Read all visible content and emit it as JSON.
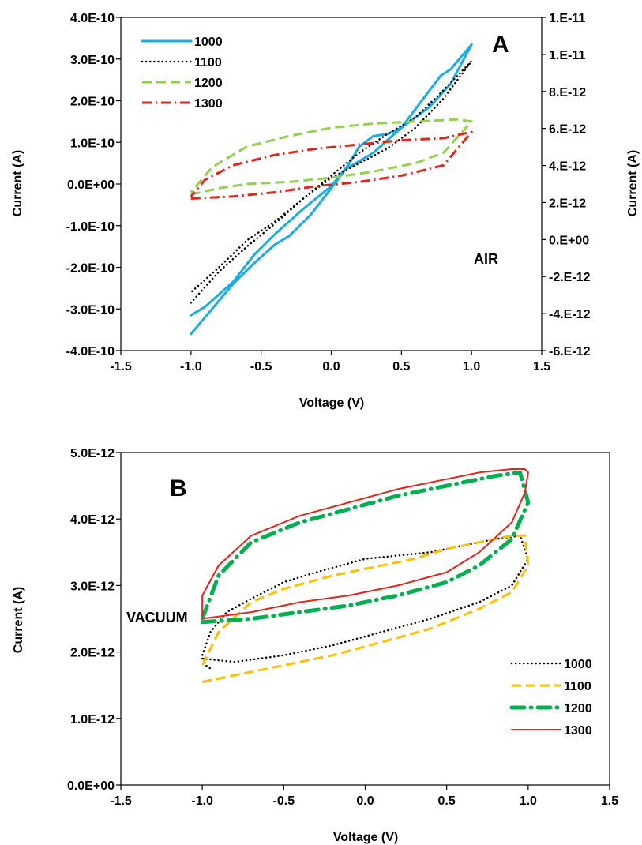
{
  "chart_data": [
    {
      "type": "line",
      "panel_label": "A",
      "annotation": "AIR",
      "xlabel": "Voltage (V)",
      "ylabel": "Current (A)",
      "y2label": "Current (A)",
      "xlim": [
        -1.5,
        1.5
      ],
      "ylim": [
        -4e-10,
        4e-10
      ],
      "y2lim": [
        -6e-12,
        1.2e-11
      ],
      "x_ticks": [
        "-1.5",
        "-1.0",
        "-0.5",
        "0.0",
        "0.5",
        "1.0",
        "1.5"
      ],
      "y_ticks": [
        "4.0E-10",
        "3.0E-10",
        "2.0E-10",
        "1.0E-10",
        "0.0E+00",
        "-1.0E-10",
        "-2.0E-10",
        "-3.0E-10",
        "-4.0E-10"
      ],
      "y2_ticks": [
        "1.E-11",
        "1.E-11",
        "8.E-12",
        "6.E-12",
        "4.E-12",
        "2.E-12",
        "0.E+00",
        "-2.E-12",
        "-4.E-12",
        "-6.E-12"
      ],
      "grid": false,
      "legend_position": "top-left",
      "series": [
        {
          "name": "1000",
          "color": "#1aace6",
          "style": "solid",
          "axis": "left",
          "x": [
            -1.0,
            -0.8,
            -0.7,
            -0.55,
            -0.4,
            -0.3,
            -0.15,
            0.0,
            0.1,
            0.3,
            0.5,
            0.6,
            0.78,
            0.85,
            1.0,
            0.85,
            0.7,
            0.5,
            0.4,
            0.3,
            0.2,
            0.12,
            0.0,
            -0.2,
            -0.4,
            -0.55,
            -0.7,
            -0.9,
            -1.0
          ],
          "y": [
            -3.6e-10,
            -2.8e-10,
            -2.4e-10,
            -1.9e-10,
            -1.45e-10,
            -1.25e-10,
            -7.5e-11,
            -1e-11,
            3.5e-11,
            7.5e-11,
            1.35e-10,
            1.8e-10,
            2.6e-10,
            2.75e-10,
            3.35e-10,
            2.4e-10,
            1.85e-10,
            1.35e-10,
            1.2e-10,
            1.15e-10,
            9e-11,
            4.5e-11,
            -5e-12,
            -6e-11,
            -1.2e-10,
            -1.7e-10,
            -2.35e-10,
            -2.95e-10,
            -3.15e-10
          ]
        },
        {
          "name": "1100",
          "color": "#000000",
          "style": "dotted",
          "axis": "left",
          "x": [
            -1.0,
            -0.8,
            -0.6,
            -0.4,
            -0.2,
            0.0,
            0.2,
            0.4,
            0.6,
            0.8,
            1.0,
            0.8,
            0.6,
            0.4,
            0.2,
            0.0,
            -0.2,
            -0.4,
            -0.6,
            -0.8,
            -1.0
          ],
          "y": [
            -2.85e-10,
            -2.1e-10,
            -1.5e-10,
            -9.5e-11,
            -3.5e-11,
            1.5e-11,
            5e-11,
            8.5e-11,
            1.35e-10,
            2.05e-10,
            2.95e-10,
            2.25e-10,
            1.6e-10,
            1.2e-10,
            7.5e-11,
            2e-11,
            -3.5e-11,
            -9e-11,
            -1.35e-10,
            -2e-10,
            -2.6e-10
          ]
        },
        {
          "name": "1200",
          "color": "#92d050",
          "style": "dashed",
          "axis": "left",
          "x": [
            -1.0,
            -0.8,
            -0.6,
            -0.3,
            0.0,
            0.3,
            0.6,
            0.8,
            1.0,
            0.9,
            0.6,
            0.3,
            0.0,
            -0.3,
            -0.6,
            -0.85,
            -1.0
          ],
          "y": [
            -2.5e-11,
            -1e-11,
            0.0,
            5e-12,
            1.5e-11,
            3e-11,
            5e-11,
            7.5e-11,
            1.5e-10,
            1.55e-10,
            1.5e-10,
            1.45e-10,
            1.35e-10,
            1.15e-10,
            9e-11,
            4e-11,
            -2e-11
          ]
        },
        {
          "name": "1300",
          "color": "#e8211b",
          "style": "dashdot",
          "axis": "left",
          "x": [
            -1.0,
            -0.7,
            -0.4,
            -0.1,
            0.2,
            0.5,
            0.8,
            1.0,
            0.8,
            0.5,
            0.2,
            -0.1,
            -0.4,
            -0.7,
            -0.9,
            -1.0
          ],
          "y": [
            -3.5e-11,
            -3e-11,
            -2e-11,
            -5e-12,
            5e-12,
            2e-11,
            4.5e-11,
            1.25e-10,
            1.1e-10,
            1.05e-10,
            9.5e-11,
            8.5e-11,
            7e-11,
            4.5e-11,
            1e-11,
            -3e-11
          ]
        }
      ]
    },
    {
      "type": "line",
      "panel_label": "B",
      "annotation": "VACUUM",
      "xlabel": "Voltage (V)",
      "ylabel": "Current (A)",
      "xlim": [
        -1.5,
        1.5
      ],
      "ylim": [
        0,
        5e-12
      ],
      "x_ticks": [
        "-1.5",
        "-1.0",
        "-0.5",
        "0.0",
        "0.5",
        "1.0",
        "1.5"
      ],
      "y_ticks": [
        "5.0E-12",
        "4.0E-12",
        "3.0E-12",
        "2.0E-12",
        "1.0E-12",
        "0.0E+00"
      ],
      "grid": false,
      "legend_position": "bottom-right",
      "series": [
        {
          "name": "1000",
          "color": "#000000",
          "style": "dotted",
          "axis": "left",
          "x": [
            -1.0,
            -0.8,
            -0.5,
            -0.2,
            0.1,
            0.4,
            0.7,
            0.9,
            1.0,
            0.95,
            0.8,
            0.6,
            0.4,
            0.2,
            0.0,
            -0.3,
            -0.5,
            -0.7,
            -0.85,
            -0.95,
            -1.0,
            -0.98,
            -0.95
          ],
          "y": [
            1.9e-12,
            1.85e-12,
            1.95e-12,
            2.1e-12,
            2.3e-12,
            2.5e-12,
            2.75e-12,
            3e-12,
            3.4e-12,
            3.75e-12,
            3.7e-12,
            3.6e-12,
            3.5e-12,
            3.45e-12,
            3.4e-12,
            3.2e-12,
            3.05e-12,
            2.8e-12,
            2.6e-12,
            2.3e-12,
            1.95e-12,
            1.8e-12,
            1.75e-12
          ]
        },
        {
          "name": "1100",
          "color": "#ffc000",
          "style": "dashed",
          "axis": "left",
          "x": [
            -1.0,
            -0.8,
            -0.5,
            -0.2,
            0.1,
            0.4,
            0.7,
            0.9,
            1.0,
            0.98,
            0.9,
            0.7,
            0.5,
            0.3,
            0.1,
            -0.2,
            -0.5,
            -0.7,
            -0.9,
            -1.0
          ],
          "y": [
            1.55e-12,
            1.65e-12,
            1.8e-12,
            1.95e-12,
            2.15e-12,
            2.35e-12,
            2.65e-12,
            2.9e-12,
            3.3e-12,
            3.75e-12,
            3.75e-12,
            3.65e-12,
            3.55e-12,
            3.4e-12,
            3.3e-12,
            3.15e-12,
            2.95e-12,
            2.75e-12,
            2.3e-12,
            1.8e-12
          ]
        },
        {
          "name": "1200",
          "color": "#00b050",
          "style": "dashdot-bold",
          "axis": "left",
          "x": [
            -1.0,
            -0.7,
            -0.4,
            -0.1,
            0.2,
            0.5,
            0.7,
            0.9,
            1.0,
            0.95,
            0.8,
            0.5,
            0.2,
            -0.1,
            -0.4,
            -0.7,
            -0.9,
            -1.0
          ],
          "y": [
            2.45e-12,
            2.5e-12,
            2.6e-12,
            2.7e-12,
            2.85e-12,
            3.05e-12,
            3.3e-12,
            3.7e-12,
            4.25e-12,
            4.7e-12,
            4.65e-12,
            4.5e-12,
            4.35e-12,
            4.15e-12,
            3.95e-12,
            3.65e-12,
            3.15e-12,
            2.5e-12
          ]
        },
        {
          "name": "1300",
          "color": "#e8211b",
          "style": "solid",
          "axis": "left",
          "x": [
            -1.0,
            -0.7,
            -0.4,
            -0.1,
            0.2,
            0.5,
            0.7,
            0.9,
            0.98,
            1.0,
            0.98,
            0.9,
            0.7,
            0.5,
            0.2,
            -0.1,
            -0.4,
            -0.7,
            -0.9,
            -1.0,
            -1.0
          ],
          "y": [
            2.5e-12,
            2.6e-12,
            2.75e-12,
            2.85e-12,
            3e-12,
            3.2e-12,
            3.5e-12,
            3.95e-12,
            4.4e-12,
            4.7e-12,
            4.75e-12,
            4.75e-12,
            4.7e-12,
            4.6e-12,
            4.45e-12,
            4.25e-12,
            4.05e-12,
            3.75e-12,
            3.3e-12,
            2.85e-12,
            2.55e-12
          ]
        }
      ]
    }
  ]
}
